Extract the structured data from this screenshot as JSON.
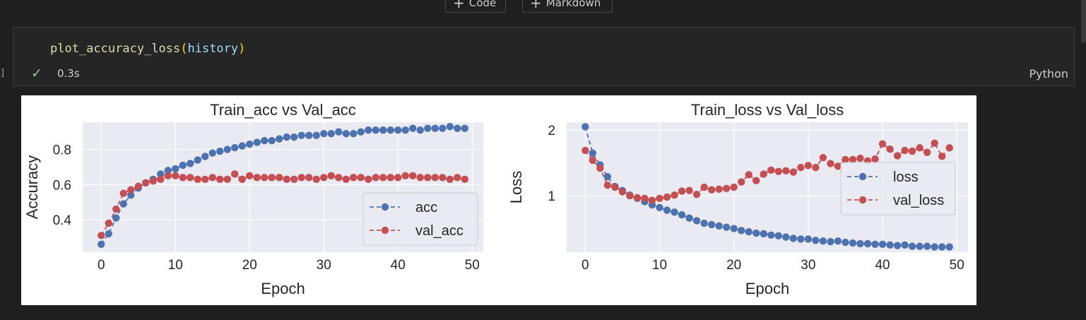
{
  "toolbar": {
    "add_code_label": "Code",
    "add_markdown_label": "Markdown"
  },
  "cell": {
    "code": {
      "function": "plot_accuracy_loss",
      "open_paren": "(",
      "argument": "history",
      "close_paren": ")"
    },
    "execution_bracket": "]",
    "status_icon": "check-icon",
    "timing": "0.3s",
    "language": "Python"
  },
  "colors": {
    "background": "#1f1f1f",
    "cell_background": "#252526",
    "series_blue": "#4c72b0",
    "series_red": "#c44e52",
    "plot_background": "#eaeaf2",
    "success": "#89d185"
  },
  "chart_data": [
    {
      "type": "line",
      "title": "Train_acc vs Val_acc",
      "xlabel": "Epoch",
      "ylabel": "Accuracy",
      "xlim": [
        -2.5,
        51.5
      ],
      "ylim": [
        0.215,
        0.955
      ],
      "xticks": [
        0,
        10,
        20,
        30,
        40,
        50
      ],
      "yticks": [
        0.4,
        0.6,
        0.8
      ],
      "ytick_labels": [
        "0.4",
        "0.6",
        "0.8"
      ],
      "grid": true,
      "legend_position": "lower right",
      "series": [
        {
          "name": "acc",
          "color": "#4c72b0",
          "x": [
            0,
            1,
            2,
            3,
            4,
            5,
            6,
            7,
            8,
            9,
            10,
            11,
            12,
            13,
            14,
            15,
            16,
            17,
            18,
            19,
            20,
            21,
            22,
            23,
            24,
            25,
            26,
            27,
            28,
            29,
            30,
            31,
            32,
            33,
            34,
            35,
            36,
            37,
            38,
            39,
            40,
            41,
            42,
            43,
            44,
            45,
            46,
            47,
            48,
            49
          ],
          "values": [
            0.26,
            0.32,
            0.41,
            0.49,
            0.54,
            0.58,
            0.61,
            0.63,
            0.66,
            0.68,
            0.69,
            0.71,
            0.72,
            0.74,
            0.76,
            0.78,
            0.79,
            0.8,
            0.81,
            0.82,
            0.83,
            0.84,
            0.85,
            0.85,
            0.86,
            0.87,
            0.87,
            0.88,
            0.88,
            0.88,
            0.89,
            0.89,
            0.9,
            0.89,
            0.89,
            0.9,
            0.91,
            0.91,
            0.91,
            0.91,
            0.91,
            0.91,
            0.92,
            0.91,
            0.92,
            0.92,
            0.92,
            0.93,
            0.92,
            0.92
          ]
        },
        {
          "name": "val_acc",
          "color": "#c44e52",
          "x": [
            0,
            1,
            2,
            3,
            4,
            5,
            6,
            7,
            8,
            9,
            10,
            11,
            12,
            13,
            14,
            15,
            16,
            17,
            18,
            19,
            20,
            21,
            22,
            23,
            24,
            25,
            26,
            27,
            28,
            29,
            30,
            31,
            32,
            33,
            34,
            35,
            36,
            37,
            38,
            39,
            40,
            41,
            42,
            43,
            44,
            45,
            46,
            47,
            48,
            49
          ],
          "values": [
            0.31,
            0.38,
            0.46,
            0.55,
            0.57,
            0.59,
            0.61,
            0.62,
            0.63,
            0.65,
            0.65,
            0.64,
            0.64,
            0.63,
            0.63,
            0.64,
            0.63,
            0.63,
            0.66,
            0.63,
            0.65,
            0.64,
            0.64,
            0.64,
            0.64,
            0.63,
            0.63,
            0.64,
            0.64,
            0.63,
            0.64,
            0.65,
            0.64,
            0.63,
            0.64,
            0.64,
            0.63,
            0.64,
            0.64,
            0.64,
            0.64,
            0.65,
            0.65,
            0.64,
            0.64,
            0.64,
            0.64,
            0.63,
            0.64,
            0.63
          ]
        }
      ]
    },
    {
      "type": "line",
      "title": "Train_loss vs Val_loss",
      "xlabel": "Epoch",
      "ylabel": "Loss",
      "xlim": [
        -2.5,
        51.5
      ],
      "ylim": [
        0.14,
        2.12
      ],
      "xticks": [
        0,
        10,
        20,
        30,
        40,
        50
      ],
      "yticks": [
        1,
        2
      ],
      "ytick_labels": [
        "1",
        "2"
      ],
      "grid": true,
      "legend_position": "upper right",
      "series": [
        {
          "name": "loss",
          "color": "#4c72b0",
          "x": [
            0,
            1,
            2,
            3,
            4,
            5,
            6,
            7,
            8,
            9,
            10,
            11,
            12,
            13,
            14,
            15,
            16,
            17,
            18,
            19,
            20,
            21,
            22,
            23,
            24,
            25,
            26,
            27,
            28,
            29,
            30,
            31,
            32,
            33,
            34,
            35,
            36,
            37,
            38,
            39,
            40,
            41,
            42,
            43,
            44,
            45,
            46,
            47,
            48,
            49
          ],
          "values": [
            2.05,
            1.65,
            1.47,
            1.29,
            1.14,
            1.08,
            1.01,
            0.96,
            0.91,
            0.86,
            0.82,
            0.78,
            0.75,
            0.71,
            0.66,
            0.62,
            0.58,
            0.56,
            0.54,
            0.52,
            0.5,
            0.47,
            0.45,
            0.43,
            0.42,
            0.4,
            0.39,
            0.37,
            0.35,
            0.34,
            0.34,
            0.32,
            0.31,
            0.3,
            0.31,
            0.29,
            0.28,
            0.27,
            0.27,
            0.26,
            0.26,
            0.25,
            0.24,
            0.25,
            0.23,
            0.23,
            0.23,
            0.22,
            0.22,
            0.22
          ]
        },
        {
          "name": "val_loss",
          "color": "#c44e52",
          "x": [
            0,
            1,
            2,
            3,
            4,
            5,
            6,
            7,
            8,
            9,
            10,
            11,
            12,
            13,
            14,
            15,
            16,
            17,
            18,
            19,
            20,
            21,
            22,
            23,
            24,
            25,
            26,
            27,
            28,
            29,
            30,
            31,
            32,
            33,
            34,
            35,
            36,
            37,
            38,
            39,
            40,
            41,
            42,
            43,
            44,
            45,
            46,
            47,
            48,
            49
          ],
          "values": [
            1.69,
            1.54,
            1.42,
            1.16,
            1.13,
            1.06,
            1.0,
            0.97,
            0.96,
            0.93,
            0.96,
            0.98,
            1.01,
            1.07,
            1.08,
            1.02,
            1.13,
            1.09,
            1.1,
            1.11,
            1.13,
            1.21,
            1.32,
            1.23,
            1.33,
            1.39,
            1.37,
            1.38,
            1.36,
            1.43,
            1.46,
            1.43,
            1.58,
            1.49,
            1.45,
            1.55,
            1.55,
            1.57,
            1.53,
            1.56,
            1.79,
            1.71,
            1.61,
            1.69,
            1.68,
            1.73,
            1.66,
            1.8,
            1.6,
            1.73
          ]
        }
      ]
    }
  ]
}
